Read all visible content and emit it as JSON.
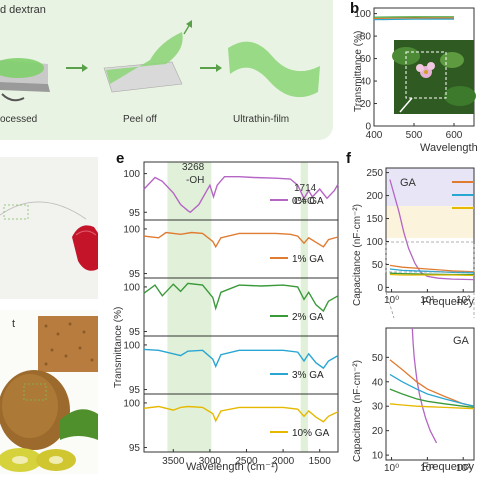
{
  "panel_a": {
    "title_fragment": "d dextran",
    "steps": [
      "ocessed",
      "Peel off",
      "Ultrathin-film"
    ]
  },
  "panel_b": {
    "label": "b",
    "ylabel": "Transmittance (%)",
    "xlabel": "Wavelength",
    "y_ticks": [
      "100",
      "80",
      "60",
      "40",
      "20",
      "0"
    ],
    "x_ticks": [
      "400",
      "500",
      "600"
    ]
  },
  "panel_d": {
    "inset_label": "t"
  },
  "panel_e": {
    "label": "e",
    "ylabel": "Transmittance (%)",
    "xlabel": "Wavelength (cm⁻¹)",
    "x_ticks": [
      "3500",
      "3000",
      "2500",
      "2000",
      "1500"
    ],
    "annotations": [
      {
        "text": "3268"
      },
      {
        "text": "-OH"
      },
      {
        "text": "1714"
      },
      {
        "text": "C=O"
      }
    ]
  },
  "panel_f": {
    "label": "f",
    "ylabel_top": "Capacitance (nF·cm⁻²)",
    "ylabel_bottom": "Capacitance (nF·cm⁻²)",
    "xlabel_top": "Frequency",
    "xlabel_bottom": "Frequency",
    "legend_title_top": "GA",
    "legend_title_bottom": "GA",
    "y_ticks_top": [
      "250",
      "200",
      "150",
      "100",
      "50",
      "0"
    ],
    "y_ticks_bottom": [
      "50",
      "40",
      "30",
      "20",
      "10"
    ],
    "x_ticks_top": [
      "10⁰",
      "10¹",
      "10²"
    ],
    "x_ticks_bottom": [
      "10⁰",
      "10¹",
      "10²"
    ]
  },
  "chart_data": [
    {
      "type": "line",
      "panel": "e",
      "xlabel": "Wavelength (cm⁻¹)",
      "ylabel": "Transmittance (%)",
      "xlim": [
        3900,
        1250
      ],
      "series": [
        {
          "name": "0% GA",
          "color": "#b565c4",
          "y_ticks": [
            "100",
            "95"
          ],
          "x": [
            3900,
            3750,
            3650,
            3500,
            3400,
            3300,
            3268,
            3150,
            3000,
            2950,
            2900,
            2800,
            2600,
            2400,
            2100,
            1900,
            1800,
            1714,
            1650,
            1600,
            1500,
            1400,
            1300,
            1250
          ],
          "y": [
            98.0,
            99.5,
            99.0,
            97.5,
            96.0,
            95.2,
            95.0,
            96.0,
            98.5,
            97.0,
            98.5,
            99.6,
            99.6,
            99.5,
            99.4,
            99.3,
            98.5,
            96.8,
            97.8,
            97.0,
            98.0,
            96.8,
            97.8,
            98.6
          ]
        },
        {
          "name": "1% GA",
          "color": "#e07b32",
          "y_ticks": [
            "100",
            "95"
          ],
          "x": [
            3900,
            3700,
            3600,
            3400,
            3250,
            3100,
            2960,
            2920,
            2850,
            2600,
            2300,
            2100,
            1900,
            1800,
            1714,
            1650,
            1550,
            1450,
            1380,
            1250
          ],
          "y": [
            99.2,
            99.0,
            99.6,
            99.4,
            99.6,
            99.5,
            98.6,
            98.0,
            99.0,
            99.5,
            99.5,
            99.5,
            99.4,
            99.2,
            98.4,
            99.0,
            98.5,
            98.0,
            98.8,
            99.1
          ]
        },
        {
          "name": "2% GA",
          "color": "#3a9a3a",
          "y_ticks": [
            "100",
            "95"
          ],
          "x": [
            3900,
            3750,
            3650,
            3500,
            3400,
            3300,
            3100,
            2960,
            2920,
            2850,
            2600,
            2300,
            2000,
            1800,
            1714,
            1650,
            1550,
            1450,
            1380,
            1250
          ],
          "y": [
            99.3,
            100.2,
            99.0,
            100.3,
            99.5,
            100.4,
            100.2,
            98.8,
            97.6,
            99.4,
            100.2,
            100.1,
            100.2,
            100.0,
            98.6,
            99.4,
            98.0,
            97.3,
            98.4,
            99.0
          ]
        },
        {
          "name": "3%  GA",
          "color": "#2aa6d2",
          "y_ticks": [
            "100",
            "95"
          ],
          "x": [
            3900,
            3700,
            3500,
            3400,
            3300,
            3100,
            2960,
            2920,
            2850,
            2600,
            2300,
            2000,
            1800,
            1714,
            1650,
            1550,
            1450,
            1380,
            1250
          ],
          "y": [
            99.5,
            99.4,
            99.0,
            98.8,
            99.3,
            99.4,
            98.4,
            97.6,
            98.9,
            99.4,
            99.4,
            99.4,
            99.2,
            98.2,
            99.0,
            98.0,
            97.4,
            98.2,
            98.8
          ]
        },
        {
          "name": "10% GA",
          "color": "#e6b800",
          "y_ticks": [
            "100",
            "95"
          ],
          "x": [
            3900,
            3700,
            3500,
            3400,
            3300,
            3100,
            2960,
            2920,
            2850,
            2600,
            2300,
            2000,
            1800,
            1714,
            1650,
            1550,
            1450,
            1380,
            1250
          ],
          "y": [
            99.4,
            99.6,
            99.2,
            99.5,
            99.6,
            99.5,
            98.8,
            98.0,
            99.1,
            99.5,
            99.5,
            99.5,
            99.3,
            98.5,
            99.1,
            98.4,
            97.9,
            98.5,
            99.0
          ]
        }
      ]
    },
    {
      "type": "line",
      "panel": "b",
      "xlabel": "Wavelength",
      "ylabel": "Transmittance (%)",
      "xlim": [
        400,
        600
      ],
      "ylim": [
        0,
        100
      ],
      "series": [
        {
          "color": "#3aa23a",
          "x": [
            400,
            450,
            500,
            550,
            600
          ],
          "y": [
            96.8,
            97.0,
            97.1,
            97.2,
            97.2
          ]
        },
        {
          "color": "#e07b32",
          "x": [
            400,
            450,
            500,
            550,
            600
          ],
          "y": [
            95.6,
            95.9,
            96.0,
            96.1,
            96.1
          ]
        },
        {
          "color": "#2aa6d2",
          "x": [
            400,
            450,
            500,
            550,
            600
          ],
          "y": [
            94.6,
            94.9,
            95.0,
            95.1,
            95.1
          ]
        }
      ]
    },
    {
      "type": "line",
      "panel": "f-top",
      "xlabel": "Frequency",
      "ylabel": "Capacitance (nF·cm⁻²)",
      "xlim": [
        0.7,
        200
      ],
      "ylim": [
        -10,
        260
      ],
      "xscale": "log",
      "series": [
        {
          "color": "#b565c4",
          "x": [
            0.9,
            1.2,
            1.6,
            2.2,
            3,
            4.5,
            6.5,
            10,
            20,
            50,
            200
          ],
          "y": [
            235,
            200,
            165,
            120,
            85,
            52,
            33,
            24,
            20,
            18,
            17
          ]
        },
        {
          "color": "#e07b32",
          "x": [
            0.9,
            2,
            10,
            50,
            200
          ],
          "y": [
            48,
            44,
            40,
            36,
            34
          ]
        },
        {
          "color": "#2aa6d2",
          "x": [
            0.9,
            2,
            10,
            50,
            200
          ],
          "y": [
            40,
            37,
            35,
            33,
            32
          ]
        },
        {
          "color": "#3a9a3a",
          "x": [
            0.9,
            2,
            10,
            50,
            200
          ],
          "y": [
            31,
            30,
            29,
            28,
            28
          ]
        },
        {
          "color": "#e6b800",
          "x": [
            0.9,
            2,
            10,
            50,
            200
          ],
          "y": [
            28,
            27,
            27,
            27,
            26
          ]
        }
      ]
    },
    {
      "type": "line",
      "panel": "f-bottom",
      "xlabel": "Frequency",
      "ylabel": "Capacitance (nF·cm⁻²)",
      "xlim": [
        0.7,
        200
      ],
      "ylim": [
        8,
        62
      ],
      "xscale": "log",
      "series": [
        {
          "color": "#b565c4",
          "x": [
            3.8,
            4.0,
            4.3,
            4.7,
            5.2,
            6.0,
            7.2,
            9.0,
            12,
            18
          ],
          "y": [
            62,
            56,
            50,
            45,
            40,
            35,
            30,
            25,
            20,
            15
          ]
        },
        {
          "color": "#e07b32",
          "x": [
            0.9,
            2,
            5,
            10,
            30,
            100,
            200
          ],
          "y": [
            49,
            45,
            40,
            37,
            34,
            31,
            30
          ]
        },
        {
          "color": "#2aa6d2",
          "x": [
            0.9,
            2,
            5,
            10,
            30,
            100,
            200
          ],
          "y": [
            43,
            40,
            37,
            35,
            33,
            31,
            30
          ]
        },
        {
          "color": "#3a9a3a",
          "x": [
            0.9,
            2,
            5,
            10,
            30,
            100,
            200
          ],
          "y": [
            37,
            35,
            33,
            32,
            31,
            30,
            29.5
          ]
        },
        {
          "color": "#e6b800",
          "x": [
            0.9,
            2,
            5,
            10,
            30,
            100,
            200
          ],
          "y": [
            31,
            30.5,
            30,
            29.8,
            29.5,
            29.2,
            29
          ]
        }
      ]
    }
  ]
}
